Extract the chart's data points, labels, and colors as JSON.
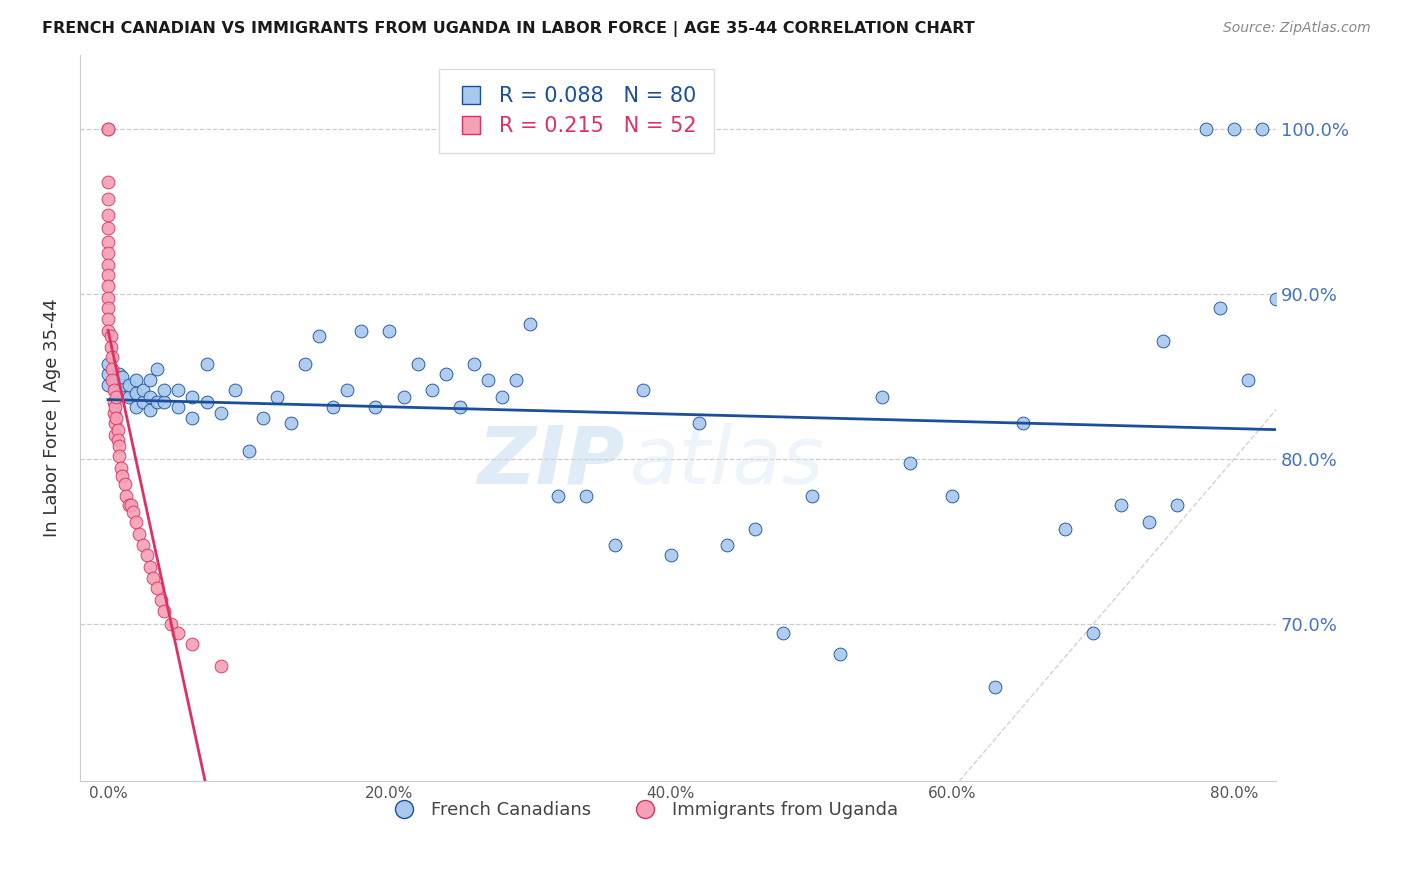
{
  "title": "FRENCH CANADIAN VS IMMIGRANTS FROM UGANDA IN LABOR FORCE | AGE 35-44 CORRELATION CHART",
  "source": "Source: ZipAtlas.com",
  "ylabel": "In Labor Force | Age 35-44",
  "xlabel_ticks": [
    "0.0%",
    "20.0%",
    "40.0%",
    "60.0%",
    "80.0%"
  ],
  "xlabel_vals": [
    0.0,
    0.2,
    0.4,
    0.6,
    0.8
  ],
  "ylabel_ticks": [
    "70.0%",
    "80.0%",
    "90.0%",
    "100.0%"
  ],
  "ylabel_vals": [
    0.7,
    0.8,
    0.9,
    1.0
  ],
  "xlim": [
    -0.02,
    0.83
  ],
  "ylim": [
    0.605,
    1.045
  ],
  "blue_R": 0.088,
  "blue_N": 80,
  "pink_R": 0.215,
  "pink_N": 52,
  "blue_color": "#A8C8EE",
  "pink_color": "#F4A0B5",
  "blue_line_color": "#1A4F9C",
  "pink_line_color": "#E03060",
  "legend_label_blue": "French Canadians",
  "legend_label_pink": "Immigrants from Uganda",
  "watermark_zip": "ZIP",
  "watermark_atlas": "atlas",
  "blue_x": [
    0.0,
    0.0,
    0.0,
    0.005,
    0.005,
    0.008,
    0.01,
    0.01,
    0.01,
    0.015,
    0.015,
    0.02,
    0.02,
    0.02,
    0.025,
    0.025,
    0.03,
    0.03,
    0.03,
    0.035,
    0.035,
    0.04,
    0.04,
    0.05,
    0.05,
    0.06,
    0.06,
    0.07,
    0.07,
    0.08,
    0.09,
    0.1,
    0.11,
    0.12,
    0.13,
    0.14,
    0.15,
    0.16,
    0.17,
    0.18,
    0.19,
    0.2,
    0.21,
    0.22,
    0.23,
    0.24,
    0.25,
    0.26,
    0.27,
    0.28,
    0.29,
    0.3,
    0.32,
    0.34,
    0.36,
    0.38,
    0.4,
    0.42,
    0.44,
    0.46,
    0.48,
    0.5,
    0.52,
    0.55,
    0.57,
    0.6,
    0.63,
    0.65,
    0.68,
    0.7,
    0.72,
    0.74,
    0.75,
    0.76,
    0.78,
    0.79,
    0.8,
    0.81,
    0.82,
    0.83
  ],
  "blue_y": [
    0.845,
    0.852,
    0.858,
    0.843,
    0.848,
    0.852,
    0.84,
    0.845,
    0.85,
    0.838,
    0.845,
    0.832,
    0.84,
    0.848,
    0.835,
    0.842,
    0.83,
    0.838,
    0.848,
    0.835,
    0.855,
    0.835,
    0.842,
    0.832,
    0.842,
    0.825,
    0.838,
    0.835,
    0.858,
    0.828,
    0.842,
    0.805,
    0.825,
    0.838,
    0.822,
    0.858,
    0.875,
    0.832,
    0.842,
    0.878,
    0.832,
    0.878,
    0.838,
    0.858,
    0.842,
    0.852,
    0.832,
    0.858,
    0.848,
    0.838,
    0.848,
    0.882,
    0.778,
    0.778,
    0.748,
    0.842,
    0.742,
    0.822,
    0.748,
    0.758,
    0.695,
    0.778,
    0.682,
    0.838,
    0.798,
    0.778,
    0.662,
    0.822,
    0.758,
    0.695,
    0.772,
    0.762,
    0.872,
    0.772,
    1.0,
    0.892,
    1.0,
    0.848,
    1.0,
    0.897
  ],
  "pink_x": [
    0.0,
    0.0,
    0.0,
    0.0,
    0.0,
    0.0,
    0.0,
    0.0,
    0.0,
    0.0,
    0.0,
    0.0,
    0.0,
    0.0,
    0.0,
    0.002,
    0.002,
    0.003,
    0.003,
    0.003,
    0.004,
    0.004,
    0.004,
    0.005,
    0.005,
    0.005,
    0.006,
    0.006,
    0.007,
    0.007,
    0.008,
    0.008,
    0.009,
    0.01,
    0.012,
    0.013,
    0.015,
    0.016,
    0.018,
    0.02,
    0.022,
    0.025,
    0.028,
    0.03,
    0.032,
    0.035,
    0.038,
    0.04,
    0.045,
    0.05,
    0.06,
    0.08
  ],
  "pink_y": [
    1.0,
    1.0,
    0.968,
    0.958,
    0.948,
    0.94,
    0.932,
    0.925,
    0.918,
    0.912,
    0.905,
    0.898,
    0.892,
    0.885,
    0.878,
    0.875,
    0.868,
    0.862,
    0.855,
    0.848,
    0.842,
    0.835,
    0.828,
    0.822,
    0.815,
    0.832,
    0.838,
    0.825,
    0.818,
    0.812,
    0.808,
    0.802,
    0.795,
    0.79,
    0.785,
    0.778,
    0.772,
    0.772,
    0.768,
    0.762,
    0.755,
    0.748,
    0.742,
    0.735,
    0.728,
    0.722,
    0.715,
    0.708,
    0.7,
    0.695,
    0.688,
    0.675
  ]
}
